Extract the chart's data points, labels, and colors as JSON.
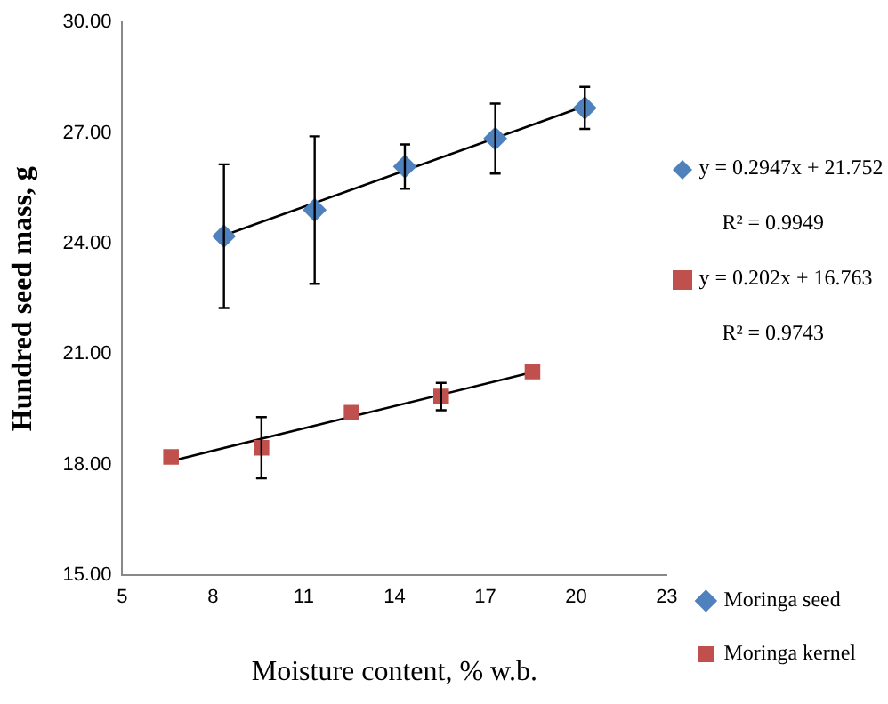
{
  "chart_data": {
    "type": "scatter",
    "xlabel": "Moisture content, % w.b.",
    "ylabel": "Hundred seed mass, g",
    "xlim": [
      5,
      23
    ],
    "xticks": [
      5,
      8,
      11,
      14,
      17,
      20,
      23
    ],
    "ylim": [
      15,
      30
    ],
    "yticks": [
      {
        "value": 15,
        "label": "15.00"
      },
      {
        "value": 18,
        "label": "18.00"
      },
      {
        "value": 21,
        "label": "21.00"
      },
      {
        "value": 24,
        "label": "24.00"
      },
      {
        "value": 27,
        "label": "27.00"
      },
      {
        "value": 30,
        "label": "30.00"
      }
    ],
    "grid": false,
    "legend": "right",
    "series": [
      {
        "name": "Moringa seed",
        "color": "#4f81bd",
        "marker": "diamond",
        "x": [
          8.36,
          11.36,
          14.34,
          17.33,
          20.29
        ],
        "values": [
          24.2,
          24.91,
          26.09,
          26.85,
          27.68
        ],
        "errors": [
          1.95,
          2.0,
          0.6,
          0.95,
          0.57
        ]
      },
      {
        "name": "Moringa kernel",
        "color": "#c0504d",
        "marker": "square",
        "x": [
          6.61,
          9.6,
          12.58,
          15.54,
          18.56
        ],
        "values": [
          18.21,
          18.46,
          19.41,
          19.85,
          20.53
        ],
        "errors": [
          null,
          0.83,
          null,
          0.37,
          null
        ]
      },
      {
        "type": "line",
        "color": "#000000",
        "marker": "none",
        "x": [
          8.36,
          20.29
        ],
        "values": [
          24.22,
          27.73
        ]
      },
      {
        "type": "line",
        "color": "#000000",
        "marker": "none",
        "x": [
          6.61,
          18.56
        ],
        "values": [
          18.1,
          20.51
        ]
      }
    ],
    "annotations": [
      "y = 0.2947x + 21.752",
      "R² = 0.9949",
      "y = 0.202x + 16.763",
      "R² = 0.9743"
    ]
  }
}
